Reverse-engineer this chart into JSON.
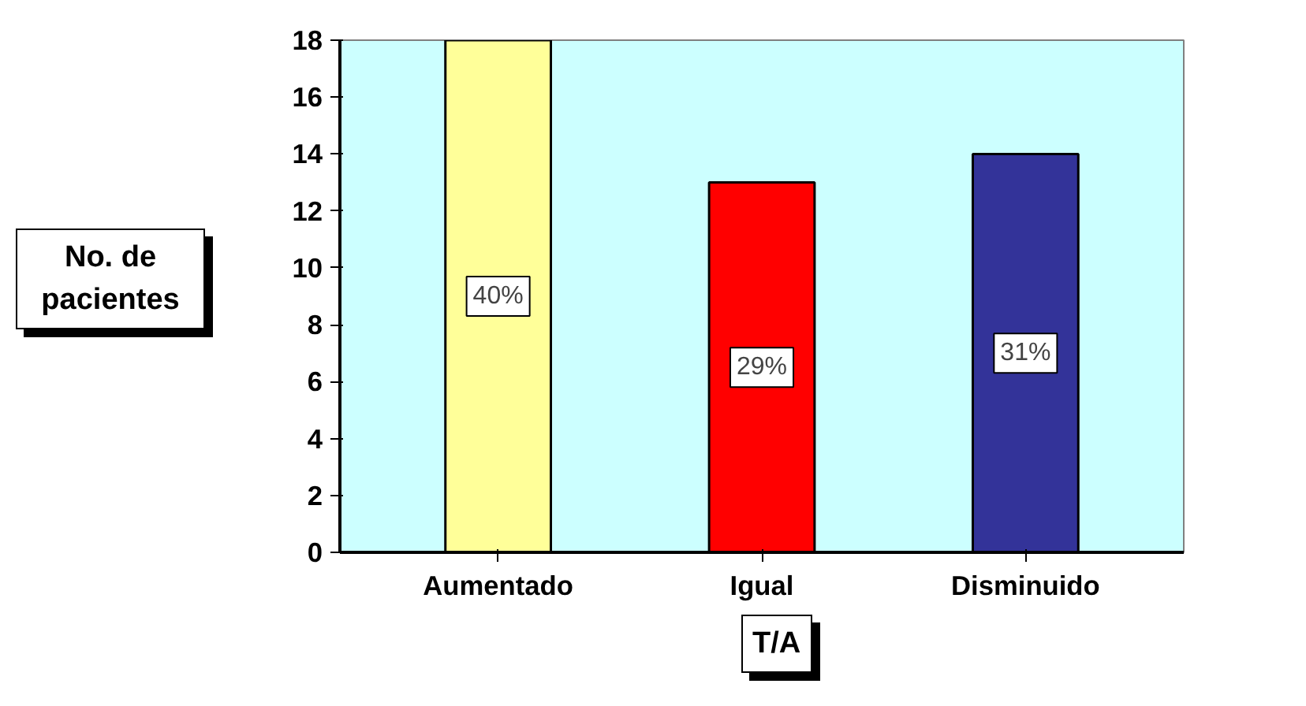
{
  "chart_data": {
    "type": "bar",
    "xlabel": "T/A",
    "ylabel": "No. de pacientes",
    "categories": [
      "Aumentado",
      "Igual",
      "Disminuido"
    ],
    "values": [
      18,
      13,
      14
    ],
    "colors": [
      "#ffff99",
      "#ff0000",
      "#333399"
    ],
    "annotations": [
      {
        "text": "40%",
        "x": "Aumentado",
        "y": 9
      },
      {
        "text": "29%",
        "x": "Igual",
        "y": 6.5
      },
      {
        "text": "31%",
        "x": "Disminuido",
        "y": 7
      }
    ],
    "ylim": [
      0,
      18
    ],
    "yticks": [
      0,
      2,
      4,
      6,
      8,
      10,
      12,
      14,
      16,
      18
    ],
    "grid": false
  }
}
